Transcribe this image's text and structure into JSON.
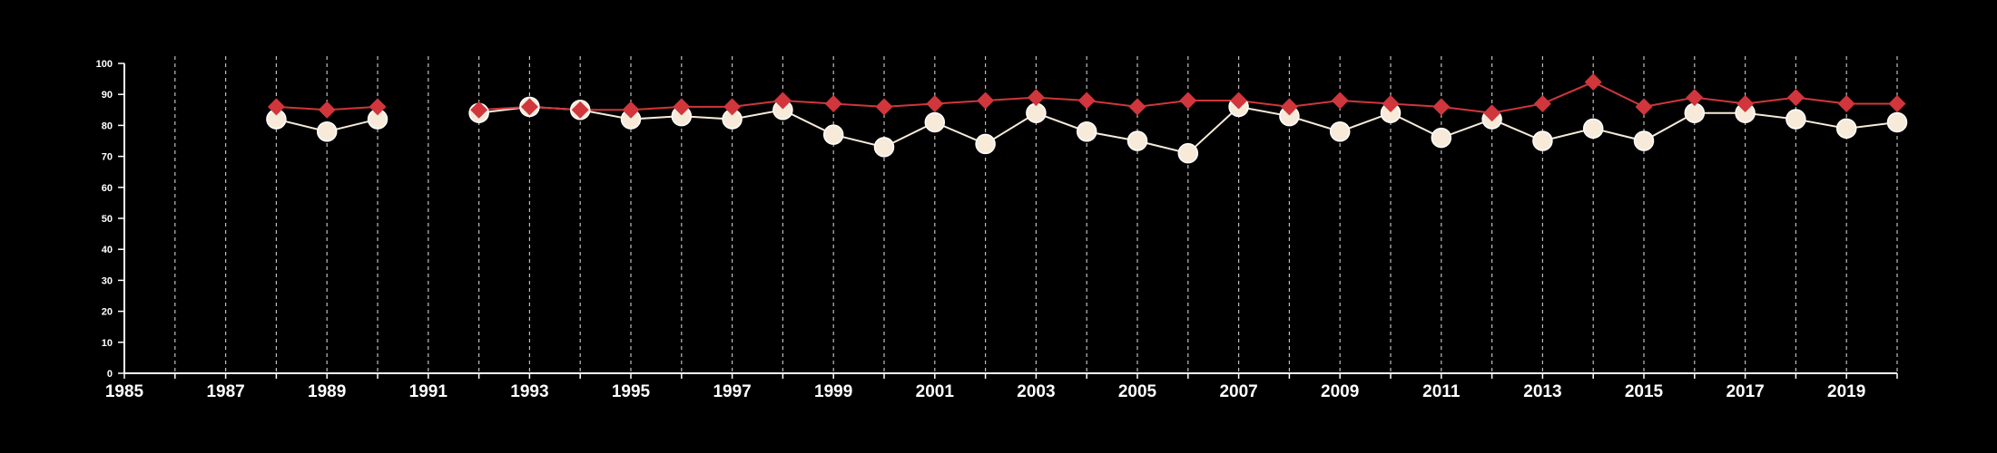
{
  "chart_data": {
    "type": "line",
    "title": "",
    "xlabel": "",
    "ylabel": "",
    "xlim": [
      1985,
      2020
    ],
    "ylim": [
      0,
      100
    ],
    "x_ticks": [
      1985,
      1987,
      1989,
      1991,
      1993,
      1995,
      1997,
      1999,
      2001,
      2003,
      2005,
      2007,
      2009,
      2011,
      2013,
      2015,
      2017,
      2019
    ],
    "x_tick_labels": [
      "1985",
      "1987",
      "1989",
      "1991",
      "1993",
      "1995",
      "1997",
      "1999",
      "2001",
      "2003",
      "2005",
      "2007",
      "2009",
      "2011",
      "2013",
      "2015",
      "2017",
      "2019"
    ],
    "y_ticks": [
      0,
      10,
      20,
      30,
      40,
      50,
      60,
      70,
      80,
      90,
      100
    ],
    "y_tick_labels": [
      "0",
      "10",
      "20",
      "30",
      "40",
      "50",
      "60",
      "70",
      "80",
      "90",
      "100"
    ],
    "vertical_grid": "dashed, one line per year",
    "legend": "none",
    "x": [
      1988,
      1989,
      1990,
      1991,
      1992,
      1993,
      1994,
      1995,
      1996,
      1997,
      1998,
      1999,
      2000,
      2001,
      2002,
      2003,
      2004,
      2005,
      2006,
      2007,
      2008,
      2009,
      2010,
      2011,
      2012,
      2013,
      2014,
      2015,
      2016,
      2017,
      2018,
      2019,
      2020
    ],
    "series": [
      {
        "marker": "diamond",
        "color": "#d0363c",
        "values": [
          86,
          85,
          86,
          null,
          85,
          86,
          85,
          85,
          86,
          86,
          88,
          87,
          86,
          87,
          88,
          89,
          88,
          86,
          88,
          88,
          86,
          88,
          87,
          86,
          84,
          87,
          94,
          86,
          89,
          87,
          89,
          87,
          87
        ]
      },
      {
        "marker": "circle",
        "color": "#f7ead9",
        "values": [
          82,
          78,
          82,
          null,
          84,
          86,
          85,
          82,
          83,
          82,
          85,
          77,
          73,
          81,
          74,
          84,
          78,
          75,
          71,
          86,
          83,
          78,
          84,
          76,
          82,
          75,
          79,
          75,
          84,
          84,
          82,
          79,
          81
        ]
      }
    ]
  }
}
